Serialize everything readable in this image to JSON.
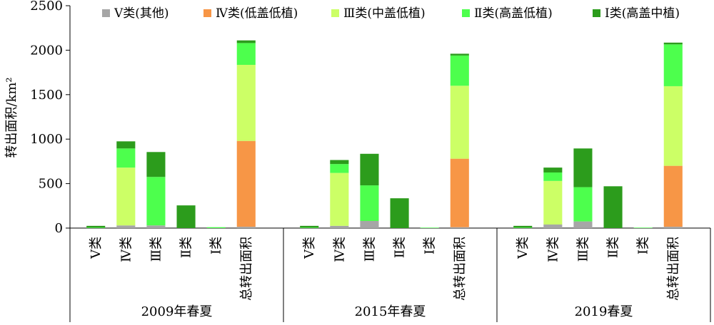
{
  "chart_data": {
    "type": "bar",
    "stacked": true,
    "ylabel": "转出面积/km²",
    "ylim": [
      0,
      2500
    ],
    "yticks": [
      0,
      500,
      1000,
      1500,
      2000,
      2500
    ],
    "grid": false,
    "legend_position": "top",
    "groups": [
      {
        "label": "2009年春夏",
        "categories": [
          "Ⅴ类",
          "Ⅳ类",
          "Ⅲ类",
          "Ⅱ类",
          "Ⅰ类",
          "总转出面积"
        ]
      },
      {
        "label": "2015年春夏",
        "categories": [
          "Ⅴ类",
          "Ⅳ类",
          "Ⅲ类",
          "Ⅱ类",
          "Ⅰ类",
          "总转出面积"
        ]
      },
      {
        "label": "2019春夏",
        "categories": [
          "Ⅴ类",
          "Ⅳ类",
          "Ⅲ类",
          "Ⅱ类",
          "Ⅰ类",
          "总转出面积"
        ]
      }
    ],
    "series": [
      {
        "name": "Ⅴ类(其他)",
        "color": "#a6a6a6",
        "values": [
          0,
          30,
          30,
          0,
          0,
          15,
          0,
          25,
          80,
          0,
          0,
          10,
          0,
          40,
          75,
          0,
          0,
          15
        ]
      },
      {
        "name": "Ⅳ类(低盖低植)",
        "color": "#f79646",
        "values": [
          0,
          0,
          0,
          0,
          0,
          965,
          0,
          0,
          0,
          0,
          0,
          770,
          0,
          0,
          0,
          0,
          0,
          685
        ]
      },
      {
        "name": "Ⅲ类(中盖低植)",
        "color": "#ccff66",
        "values": [
          0,
          650,
          0,
          0,
          0,
          855,
          0,
          595,
          0,
          0,
          0,
          820,
          0,
          490,
          0,
          0,
          0,
          895
        ]
      },
      {
        "name": "Ⅱ类(高盖低植)",
        "color": "#4dff4d",
        "values": [
          5,
          215,
          545,
          0,
          10,
          245,
          5,
          100,
          400,
          0,
          5,
          340,
          5,
          95,
          385,
          0,
          5,
          470
        ]
      },
      {
        "name": "Ⅰ类(高盖中植)",
        "color": "#2c9c1c",
        "values": [
          20,
          80,
          280,
          255,
          0,
          30,
          20,
          45,
          355,
          335,
          0,
          20,
          20,
          55,
          435,
          470,
          0,
          20
        ]
      }
    ]
  }
}
